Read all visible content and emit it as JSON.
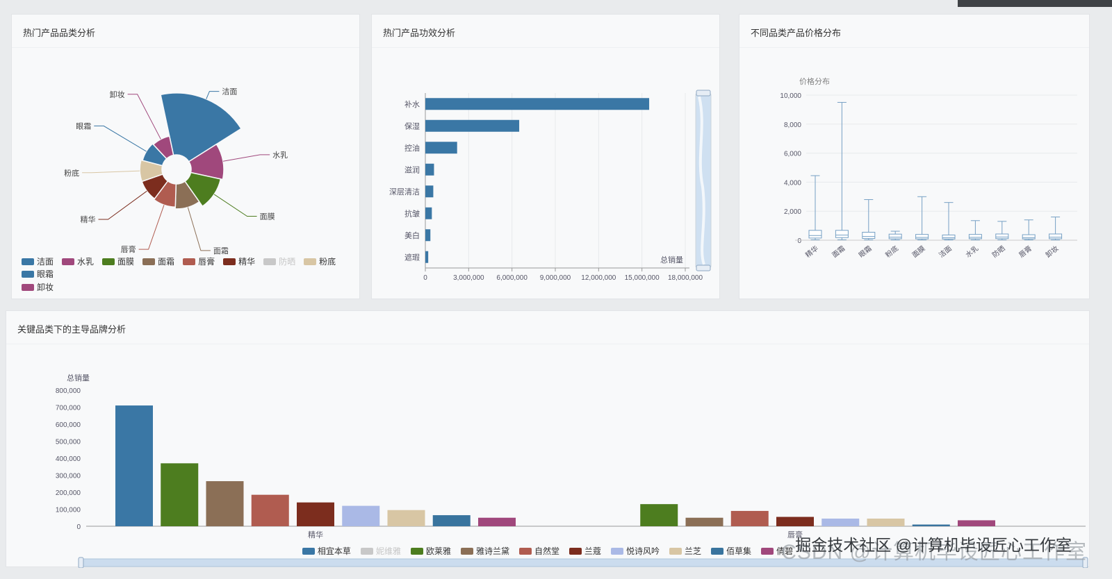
{
  "page": {
    "bg": "#e9ebed"
  },
  "panels": {
    "category": {
      "title": "热门产品品类分析"
    },
    "efficacy": {
      "title": "热门产品功效分析"
    },
    "price": {
      "title": "不同品类产品价格分布"
    },
    "brand": {
      "title": "关键品类下的主导品牌分析"
    }
  },
  "watermark": {
    "front": "掘金技术社区 @计算机毕设匠心工作室",
    "back": "CSDN @计算机毕设匠心工作室"
  },
  "chart_data": [
    {
      "id": "rose",
      "type": "pie",
      "subtype": "nightingale-rose",
      "title": "热门产品品类分析",
      "legend_position": "bottom-left",
      "items": [
        {
          "name": "洁面",
          "value": 1720000,
          "color": "#3a77a5"
        },
        {
          "name": "水乳",
          "value": 480000,
          "color": "#a0487c"
        },
        {
          "name": "面膜",
          "value": 420000,
          "color": "#4d7d1f"
        },
        {
          "name": "面霜",
          "value": 280000,
          "color": "#8b6f56"
        },
        {
          "name": "唇膏",
          "value": 240000,
          "color": "#b05c50"
        },
        {
          "name": "精华",
          "value": 220000,
          "color": "#7c2d1e"
        },
        {
          "name": "防晒",
          "color": "#c8c8c8",
          "deselected": true
        },
        {
          "name": "粉底",
          "value": 220000,
          "color": "#d8c6a4"
        },
        {
          "name": "眼霜",
          "value": 190000,
          "color": "#3a77a5"
        },
        {
          "name": "卸妆",
          "value": 170000,
          "color": "#a0487c"
        }
      ]
    },
    {
      "id": "efficacy",
      "type": "bar",
      "orientation": "horizontal",
      "title": "热门产品功效分析",
      "categories": [
        "补水",
        "保湿",
        "控油",
        "滋润",
        "深层清洁",
        "抗皱",
        "美白",
        "遮瑕"
      ],
      "values": [
        15500000,
        6500000,
        2200000,
        600000,
        550000,
        450000,
        350000,
        200000
      ],
      "xlabel": "总销量",
      "xlim": [
        0,
        18000000
      ],
      "xticks": [
        0,
        3000000,
        6000000,
        9000000,
        12000000,
        15000000,
        18000000
      ],
      "color": "#3a77a5",
      "grid": true,
      "datazoom": "right"
    },
    {
      "id": "price",
      "type": "boxplot",
      "title": "价格分布",
      "categories": [
        "精华",
        "面霜",
        "眼霜",
        "粉底",
        "面膜",
        "洁面",
        "水乳",
        "防晒",
        "唇膏",
        "卸妆"
      ],
      "values": [
        [
          30,
          150,
          320,
          680,
          4450
        ],
        [
          30,
          180,
          350,
          680,
          9500
        ],
        [
          25,
          120,
          260,
          550,
          2800
        ],
        [
          20,
          100,
          210,
          420,
          620
        ],
        [
          20,
          90,
          190,
          400,
          3000
        ],
        [
          15,
          80,
          170,
          360,
          2600
        ],
        [
          20,
          100,
          200,
          400,
          1350
        ],
        [
          25,
          110,
          220,
          430,
          1300
        ],
        [
          20,
          90,
          180,
          380,
          1400
        ],
        [
          20,
          100,
          210,
          430,
          1600
        ]
      ],
      "ylim": [
        0,
        10000
      ],
      "yticks": [
        0,
        2000,
        4000,
        6000,
        8000,
        10000
      ],
      "grid": true,
      "color": "#76a0c4"
    },
    {
      "id": "brand",
      "type": "bar",
      "orientation": "vertical",
      "grouped": true,
      "title": "关键品类下的主导品牌分析",
      "categories": [
        "精华",
        "唇膏"
      ],
      "ylabel": "总销量",
      "ylim": [
        0,
        800000
      ],
      "yticks": [
        0,
        100000,
        200000,
        300000,
        400000,
        500000,
        600000,
        700000,
        800000
      ],
      "grid": false,
      "datazoom": "bottom",
      "series": [
        {
          "name": "相宜本草",
          "color": "#3a77a5",
          "values": [
            710000,
            0
          ]
        },
        {
          "name": "妮维雅",
          "color": "#c8c8c8",
          "deselected": true
        },
        {
          "name": "欧莱雅",
          "color": "#4d7d1f",
          "values": [
            370000,
            130000
          ]
        },
        {
          "name": "雅诗兰黛",
          "color": "#8b6f56",
          "values": [
            265000,
            50000
          ]
        },
        {
          "name": "自然堂",
          "color": "#b05c50",
          "values": [
            185000,
            90000
          ]
        },
        {
          "name": "兰蔻",
          "color": "#7c2d1e",
          "values": [
            140000,
            55000
          ]
        },
        {
          "name": "悦诗风吟",
          "color": "#aab9e6",
          "values": [
            120000,
            45000
          ]
        },
        {
          "name": "兰芝",
          "color": "#d8c6a4",
          "values": [
            95000,
            45000
          ]
        },
        {
          "name": "佰草集",
          "color": "#39749e",
          "values": [
            65000,
            10000
          ]
        },
        {
          "name": "倩碧",
          "color": "#a0487c",
          "values": [
            50000,
            35000
          ]
        }
      ]
    }
  ]
}
